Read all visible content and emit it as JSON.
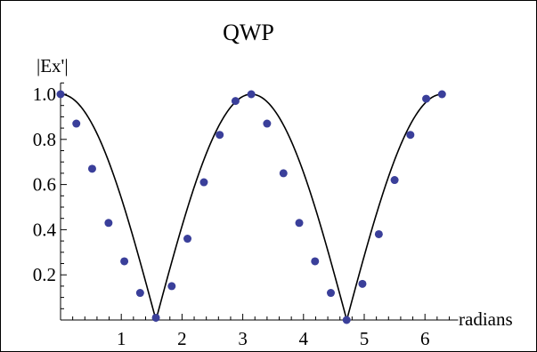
{
  "chart_data": {
    "type": "scatter",
    "title": "QWP",
    "xlabel": "radians",
    "ylabel": "|Ex'|",
    "xlim": [
      0,
      6.4
    ],
    "ylim": [
      0,
      1.05
    ],
    "x_ticks": [
      1,
      2,
      3,
      4,
      5,
      6
    ],
    "y_ticks": [
      0.2,
      0.4,
      0.6,
      0.8,
      1.0
    ],
    "x_tick_labels": [
      "1",
      "2",
      "3",
      "4",
      "5",
      "6"
    ],
    "y_tick_labels": [
      "0.2",
      "0.4",
      "0.6",
      "0.8",
      "1.0"
    ],
    "grid": false,
    "curve": "abs(cos(x))",
    "points": {
      "x": [
        0,
        0.26,
        0.52,
        0.79,
        1.05,
        1.31,
        1.57,
        1.83,
        2.09,
        2.36,
        2.62,
        2.88,
        3.14,
        3.4,
        3.67,
        3.93,
        4.19,
        4.45,
        4.71,
        4.97,
        5.24,
        5.5,
        5.76,
        6.02,
        6.28
      ],
      "y": [
        1.0,
        0.87,
        0.67,
        0.43,
        0.26,
        0.12,
        0.01,
        0.15,
        0.36,
        0.61,
        0.82,
        0.97,
        1.0,
        0.87,
        0.65,
        0.43,
        0.26,
        0.12,
        0.0,
        0.16,
        0.38,
        0.62,
        0.82,
        0.98,
        1.0
      ]
    },
    "colors": {
      "points": "#3a3f9a",
      "curve": "#000000",
      "axes": "#000000"
    }
  }
}
